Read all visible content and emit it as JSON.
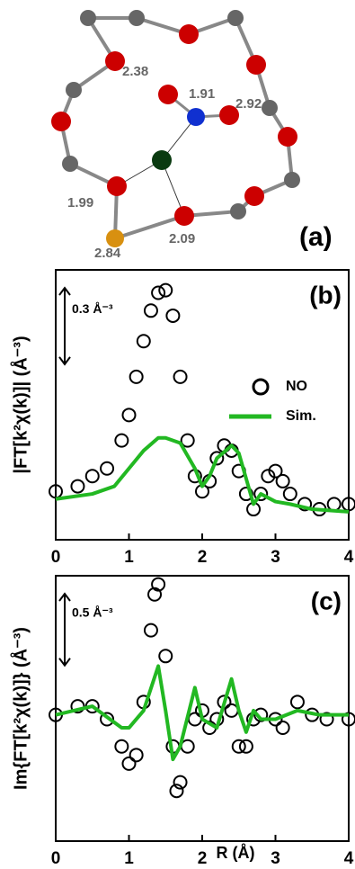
{
  "diagram": {
    "bond_labels": [
      "2.38",
      "1.91",
      "2.92",
      "1.99",
      "2.84",
      "2.09"
    ],
    "panel_label": "(a)"
  },
  "chart_data": [
    {
      "type": "scatter-line",
      "panel_label": "(b)",
      "y_label": "|FT[k²χ(k)]| (Å⁻³)",
      "scale_bar": {
        "value": 0.3,
        "label": "0.3 Å⁻³"
      },
      "xlim": [
        0,
        4
      ],
      "xticks": [
        0,
        1,
        2,
        3,
        4
      ],
      "ylim": [
        0,
        1.06
      ],
      "series": [
        {
          "name": "NO",
          "style": "circles",
          "color": "#000000",
          "x": [
            0,
            0.3,
            0.5,
            0.7,
            0.9,
            1.0,
            1.1,
            1.2,
            1.3,
            1.4,
            1.5,
            1.6,
            1.7,
            1.8,
            1.9,
            2.0,
            2.1,
            2.2,
            2.3,
            2.4,
            2.5,
            2.6,
            2.7,
            2.8,
            2.9,
            3.0,
            3.1,
            3.2,
            3.4,
            3.6,
            3.8,
            4.0
          ],
          "values": [
            0.19,
            0.21,
            0.25,
            0.28,
            0.39,
            0.49,
            0.64,
            0.78,
            0.9,
            0.97,
            0.98,
            0.88,
            0.64,
            0.39,
            0.25,
            0.19,
            0.23,
            0.32,
            0.37,
            0.35,
            0.27,
            0.18,
            0.12,
            0.18,
            0.25,
            0.27,
            0.23,
            0.18,
            0.14,
            0.12,
            0.14,
            0.14
          ]
        },
        {
          "name": "Sim.",
          "style": "line",
          "color": "#22b822",
          "x": [
            0,
            0.5,
            0.8,
            1.0,
            1.2,
            1.4,
            1.5,
            1.7,
            1.9,
            2.0,
            2.1,
            2.2,
            2.4,
            2.5,
            2.7,
            2.8,
            3.0,
            3.2,
            3.5,
            4.0
          ],
          "values": [
            0.16,
            0.18,
            0.21,
            0.28,
            0.35,
            0.4,
            0.4,
            0.38,
            0.28,
            0.21,
            0.25,
            0.32,
            0.37,
            0.34,
            0.14,
            0.18,
            0.15,
            0.14,
            0.12,
            0.11
          ]
        }
      ]
    },
    {
      "type": "scatter-line",
      "panel_label": "(c)",
      "y_label": "Im{FT[k²χ(k)]} (Å⁻³)",
      "x_label": "R (Å)",
      "scale_bar": {
        "value": 0.5,
        "label": "0.5 Å⁻³"
      },
      "xlim": [
        0,
        4
      ],
      "xticks": [
        0,
        1,
        2,
        3,
        4
      ],
      "ylim": [
        -0.88,
        0.97
      ],
      "series": [
        {
          "name": "NO",
          "style": "circles",
          "color": "#000000",
          "x": [
            0,
            0.3,
            0.5,
            0.7,
            0.9,
            1.0,
            1.1,
            1.2,
            1.3,
            1.35,
            1.4,
            1.5,
            1.6,
            1.65,
            1.7,
            1.8,
            1.9,
            2.0,
            2.1,
            2.2,
            2.3,
            2.4,
            2.5,
            2.6,
            2.7,
            2.8,
            3.0,
            3.1,
            3.3,
            3.5,
            3.7,
            4.0
          ],
          "values": [
            0,
            0.06,
            0.06,
            -0.03,
            -0.22,
            -0.34,
            -0.28,
            0.09,
            0.59,
            0.84,
            0.91,
            0.41,
            -0.22,
            -0.53,
            -0.47,
            -0.22,
            -0.03,
            0.03,
            -0.09,
            -0.03,
            0.09,
            0.03,
            -0.22,
            -0.22,
            -0.03,
            0,
            -0.03,
            -0.09,
            0.09,
            0,
            -0.03,
            -0.03
          ]
        },
        {
          "name": "Sim.",
          "style": "line",
          "color": "#22b822",
          "x": [
            0,
            0.5,
            0.9,
            1.0,
            1.2,
            1.4,
            1.5,
            1.6,
            1.7,
            1.9,
            2.0,
            2.2,
            2.4,
            2.5,
            2.6,
            2.7,
            2.8,
            3.0,
            3.3,
            3.6,
            4.0
          ],
          "values": [
            0,
            0.06,
            -0.09,
            -0.09,
            0.03,
            0.34,
            0.03,
            -0.31,
            -0.22,
            0.19,
            -0.03,
            -0.09,
            0.25,
            0.03,
            -0.12,
            0.03,
            -0.03,
            -0.03,
            0.03,
            0,
            0
          ]
        }
      ]
    }
  ]
}
